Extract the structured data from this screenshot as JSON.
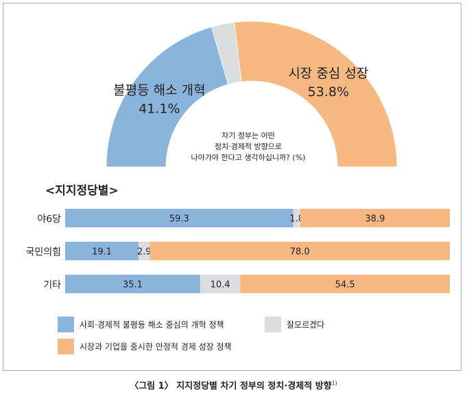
{
  "colors": {
    "reform": "#8bb4dd",
    "market": "#f6b982",
    "unknown": "#dcdddf",
    "text": "#231f20",
    "border": "#a7a9ac"
  },
  "chart_data": [
    {
      "type": "pie",
      "style": "semicircle-donut",
      "question": [
        "차기 정부는 어떤",
        "정치·경제적 방향으로",
        "나아가야 한다고 생각하십니까? (%)"
      ],
      "slices": [
        {
          "label": "불평등 해소 개혁",
          "value": 41.1,
          "value_label": "41.1%",
          "color_key": "reform"
        },
        {
          "label": "",
          "value": 5.1,
          "value_label": "",
          "color_key": "unknown"
        },
        {
          "label": "시장 중심 성장",
          "value": 53.8,
          "value_label": "53.8%",
          "color_key": "market"
        }
      ]
    },
    {
      "type": "bar",
      "orientation": "horizontal",
      "stacked": true,
      "title": "<지지정당별>",
      "categories": [
        "야6당",
        "국민의힘",
        "기타"
      ],
      "series": [
        {
          "name": "사회·경제적 불평등 해소 중심의 개혁 정책",
          "color_key": "reform",
          "values": [
            59.3,
            19.1,
            35.1
          ]
        },
        {
          "name": "잘모르겠다",
          "color_key": "unknown",
          "values": [
            1.8,
            2.9,
            10.4
          ]
        },
        {
          "name": "시장과 기업을 중시한 안정적 경제 성장 정책",
          "color_key": "market",
          "values": [
            38.9,
            78.0,
            54.5
          ]
        }
      ],
      "xlim": [
        0,
        100
      ],
      "legend_position": "bottom"
    }
  ],
  "caption": {
    "text": "〈그림 1〉 지지정당별 차기 정부의 정치·경제적 방향",
    "footnote_mark": "1)"
  }
}
